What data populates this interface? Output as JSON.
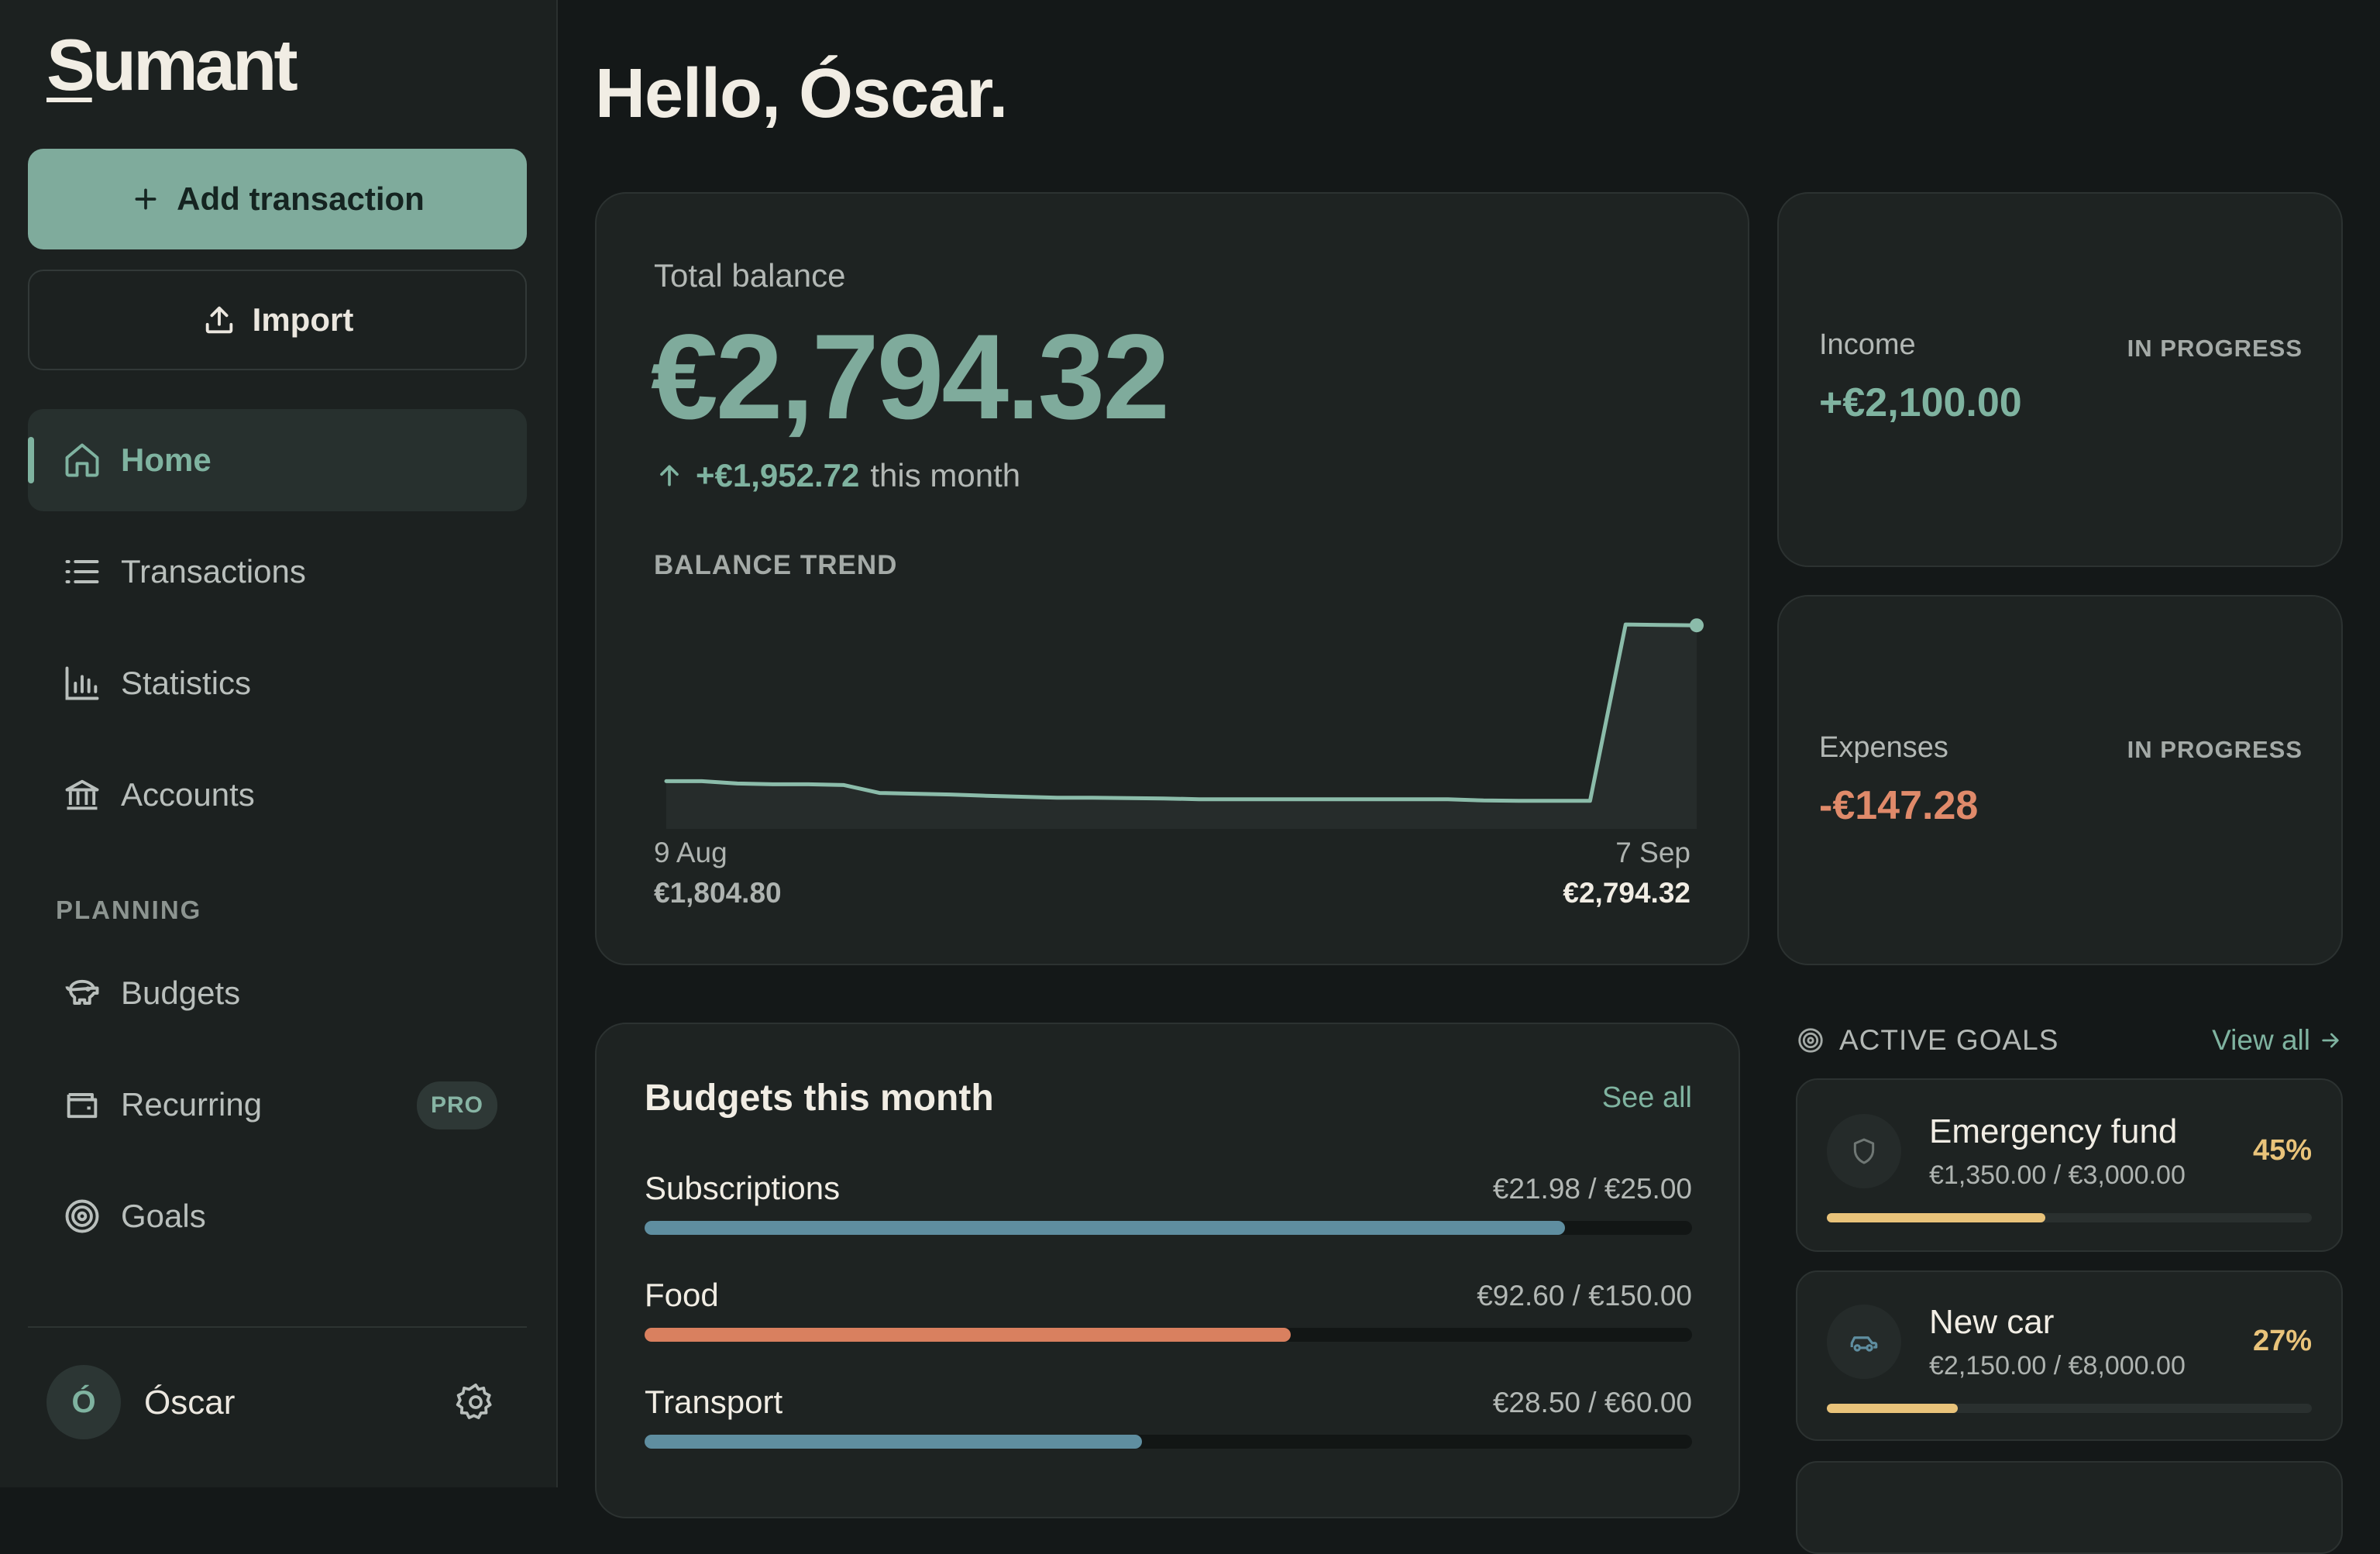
{
  "app": {
    "logo": "Sumant",
    "logo_first": "S",
    "logo_rest": "umant"
  },
  "sidebar": {
    "add_transaction": "Add transaction",
    "import": "Import",
    "nav": [
      {
        "label": "Home",
        "icon": "home-icon"
      },
      {
        "label": "Transactions",
        "icon": "list-icon"
      },
      {
        "label": "Statistics",
        "icon": "bar-chart-icon"
      },
      {
        "label": "Accounts",
        "icon": "bank-icon"
      }
    ],
    "planning_label": "PLANNING",
    "planning": [
      {
        "label": "Budgets",
        "icon": "piggy-bank-icon"
      },
      {
        "label": "Recurring",
        "icon": "wallet-icon",
        "badge": "PRO"
      },
      {
        "label": "Goals",
        "icon": "target-icon"
      }
    ],
    "user": {
      "initial": "Ó",
      "name": "Óscar"
    }
  },
  "main": {
    "greeting": "Hello, Óscar.",
    "balance": {
      "label": "Total balance",
      "value": "€2,794.32",
      "change_amount": "+€1,952.72",
      "change_suffix": "this month",
      "trend_label": "BALANCE TREND",
      "start_date": "9 Aug",
      "start_value": "€1,804.80",
      "end_date": "7 Sep",
      "end_value": "€2,794.32"
    },
    "income": {
      "label": "Income",
      "status": "IN PROGRESS",
      "value": "+€2,100.00",
      "color": "#7fb3a0"
    },
    "expenses": {
      "label": "Expenses",
      "status": "IN PROGRESS",
      "value": "-€147.28",
      "color": "#e08a6a"
    },
    "budgets": {
      "title": "Budgets this month",
      "see_all": "See all",
      "items": [
        {
          "name": "Subscriptions",
          "amount": "€21.98 / €25.00",
          "fraction": 0.879,
          "color": "#5f8ea0"
        },
        {
          "name": "Food",
          "amount": "€92.60 / €150.00",
          "fraction": 0.617,
          "color": "#d9805f"
        },
        {
          "name": "Transport",
          "amount": "€28.50 / €60.00",
          "fraction": 0.475,
          "color": "#5f8ea0"
        }
      ]
    },
    "goals": {
      "title": "ACTIVE GOALS",
      "view_all": "View all",
      "items": [
        {
          "name": "Emergency fund",
          "amounts": "€1,350.00 / €3,000.00",
          "percent": "45%",
          "fraction": 0.45,
          "icon": "shield-icon"
        },
        {
          "name": "New car",
          "amounts": "€2,150.00 / €8,000.00",
          "percent": "27%",
          "fraction": 0.27,
          "icon": "car-icon"
        }
      ]
    }
  },
  "chart_data": {
    "type": "area",
    "x": [
      "9 Aug",
      "10 Aug",
      "11 Aug",
      "12 Aug",
      "13 Aug",
      "14 Aug",
      "15 Aug",
      "16 Aug",
      "17 Aug",
      "18 Aug",
      "19 Aug",
      "20 Aug",
      "21 Aug",
      "22 Aug",
      "23 Aug",
      "24 Aug",
      "25 Aug",
      "26 Aug",
      "27 Aug",
      "28 Aug",
      "29 Aug",
      "30 Aug",
      "31 Aug",
      "1 Sep",
      "2 Sep",
      "3 Sep",
      "4 Sep",
      "5 Sep",
      "6 Sep",
      "7 Sep"
    ],
    "values": [
      1804.8,
      1804.8,
      1790,
      1785,
      1785,
      1780,
      1730,
      1725,
      1720,
      1712,
      1706,
      1700,
      1700,
      1697,
      1695,
      1690,
      1690,
      1690,
      1690,
      1690,
      1690,
      1690,
      1690,
      1682,
      1680,
      1680,
      1680,
      2800,
      2797,
      2794.32
    ],
    "ylabel": "",
    "xlabel": ""
  }
}
